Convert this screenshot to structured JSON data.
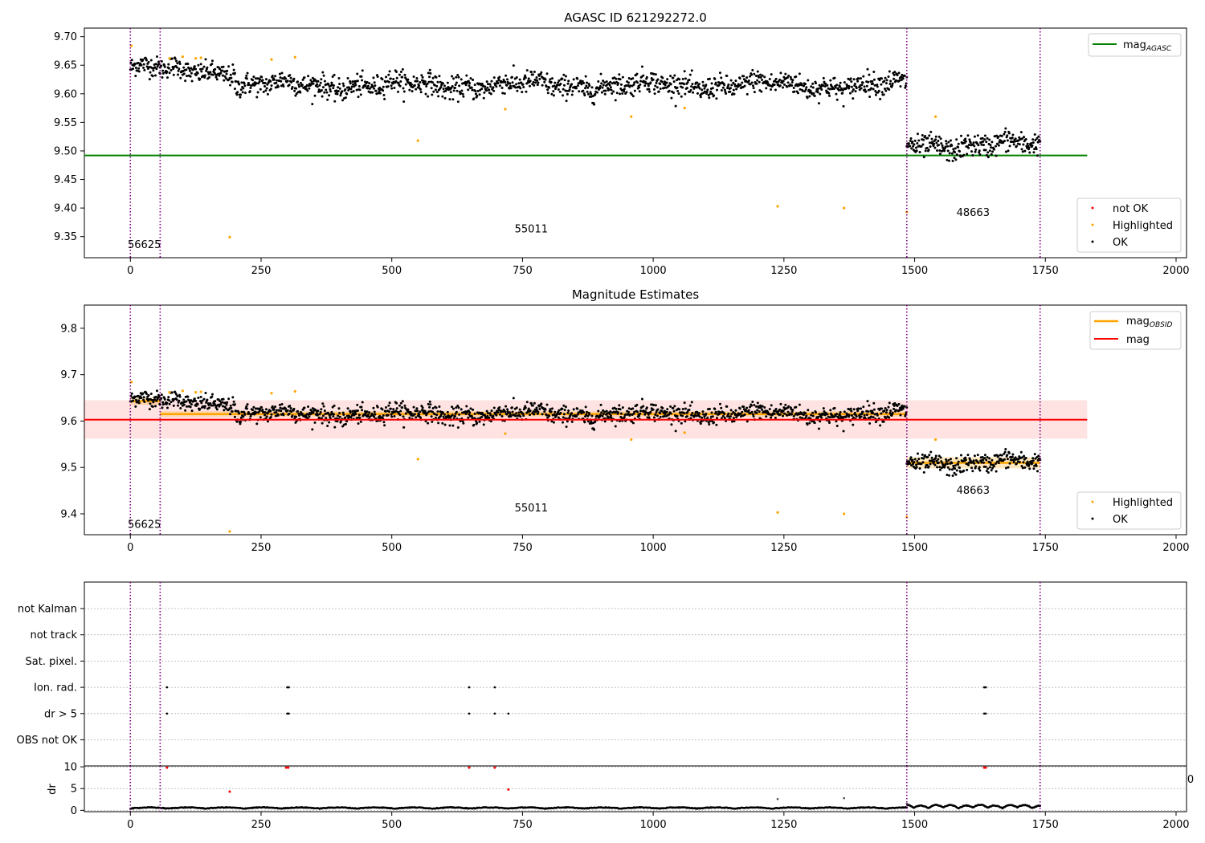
{
  "chart_data": [
    {
      "type": "scatter",
      "title": "AGASC ID 621292272.0",
      "xlim": [
        -88,
        2020
      ],
      "ylim": [
        9.313,
        9.715
      ],
      "xticks": [
        0,
        250,
        500,
        750,
        1000,
        1250,
        1500,
        1750,
        2000
      ],
      "yticks": [
        9.35,
        9.4,
        9.45,
        9.5,
        9.55,
        9.6,
        9.65,
        9.7
      ],
      "ytick_labels": [
        "9.35",
        "9.40",
        "9.45",
        "9.50",
        "9.55",
        "9.60",
        "9.65",
        "9.70"
      ],
      "vlines": [
        0,
        57,
        1485,
        1740
      ],
      "hline": {
        "value": 9.492,
        "x": [
          -88,
          1830
        ],
        "color": "#008000"
      },
      "segments": [
        {
          "x0": 0,
          "x1": 57,
          "center": 9.645,
          "spread": 0.012
        },
        {
          "x0": 57,
          "x1": 200,
          "center": 9.64,
          "spread": 0.012
        },
        {
          "x0": 200,
          "x1": 1485,
          "center": 9.615,
          "spread": 0.013
        },
        {
          "x0": 1485,
          "x1": 1740,
          "center": 9.51,
          "spread": 0.013
        }
      ],
      "highlighted": [
        [
          2,
          9.684
        ],
        [
          75,
          9.662
        ],
        [
          100,
          9.665
        ],
        [
          125,
          9.662
        ],
        [
          135,
          9.663
        ],
        [
          190,
          9.349
        ],
        [
          270,
          9.66
        ],
        [
          315,
          9.664
        ],
        [
          550,
          9.518
        ],
        [
          717,
          9.573
        ],
        [
          958,
          9.56
        ],
        [
          1060,
          9.575
        ],
        [
          1238,
          9.403
        ],
        [
          1365,
          9.4
        ],
        [
          1485,
          9.393
        ],
        [
          1540,
          9.56
        ]
      ],
      "annotations": [
        {
          "text": "56625",
          "x": -5,
          "y": 9.33
        },
        {
          "text": "55011",
          "x": 735,
          "y": 9.357
        },
        {
          "text": "48663",
          "x": 1580,
          "y": 9.386
        }
      ],
      "legend_top": {
        "label_main": "mag",
        "label_sub": "AGASC",
        "color": "#008000"
      },
      "legend_bottom": [
        {
          "label": "not OK",
          "color": "#ff0000"
        },
        {
          "label": "Highlighted",
          "color": "#ffa500"
        },
        {
          "label": "OK",
          "color": "#000000"
        }
      ],
      "legend_top_placement": "top-right",
      "legend_bottom_placement": "bottom-right",
      "grid": false
    },
    {
      "type": "scatter",
      "title": "Magnitude Estimates",
      "xlim": [
        -88,
        2020
      ],
      "ylim": [
        9.355,
        9.85
      ],
      "xticks": [
        0,
        250,
        500,
        750,
        1000,
        1250,
        1500,
        1750,
        2000
      ],
      "yticks": [
        9.4,
        9.5,
        9.6,
        9.7,
        9.8
      ],
      "ytick_labels": [
        "9.4",
        "9.5",
        "9.6",
        "9.7",
        "9.8"
      ],
      "vlines": [
        0,
        57,
        1485,
        1740
      ],
      "mag_line": {
        "value": 9.603,
        "x": [
          -88,
          1830
        ],
        "color": "#ff0000"
      },
      "mag_band": {
        "low": 9.562,
        "high": 9.645,
        "x": [
          -88,
          1830
        ],
        "color": "#ff0000"
      },
      "obsid_mags": [
        {
          "x0": 0,
          "x1": 57,
          "value": 9.643,
          "err": 0.008
        },
        {
          "x0": 57,
          "x1": 1485,
          "value": 9.615,
          "err": 0.006
        },
        {
          "x0": 1485,
          "x1": 1740,
          "value": 9.51,
          "err": 0.012
        }
      ],
      "annotations": [
        {
          "text": "56625",
          "x": -5,
          "y": 9.37
        },
        {
          "text": "55011",
          "x": 735,
          "y": 9.405
        },
        {
          "text": "48663",
          "x": 1580,
          "y": 9.443
        }
      ],
      "legend_top": [
        {
          "label_main": "mag",
          "label_sub": "OBSID",
          "color": "#ffa500"
        },
        {
          "label_main": "mag",
          "label_sub": "",
          "color": "#ff0000"
        }
      ],
      "legend_bottom": [
        {
          "label": "Highlighted",
          "color": "#ffa500"
        },
        {
          "label": "OK",
          "color": "#000000"
        }
      ],
      "extra_highlighted": [
        [
          190,
          9.362
        ]
      ],
      "grid": false
    },
    {
      "type": "scatter",
      "title": "",
      "xlim": [
        -88,
        2020
      ],
      "categories": [
        "not Kalman",
        "not track",
        "Sat. pixel.",
        "Ion. rad.",
        "dr > 5",
        "OBS not OK"
      ],
      "flags": {
        "Ion. rad.": [
          70,
          300,
          303,
          648,
          697,
          1633,
          1636
        ],
        "dr > 5": [
          70,
          300,
          303,
          648,
          697,
          723,
          1633,
          1636
        ],
        "not Kalman": [],
        "not track": [],
        "Sat. pixel.": [],
        "OBS not OK": []
      },
      "grid": true
    },
    {
      "type": "scatter",
      "title": "",
      "xlim": [
        -88,
        2020
      ],
      "ylim": [
        -0.3,
        10.2
      ],
      "xticks": [
        0,
        250,
        500,
        750,
        1000,
        1250,
        1500,
        1750,
        2000
      ],
      "yticks": [
        0,
        5,
        10
      ],
      "ytick_labels": [
        "0",
        "5",
        "10"
      ],
      "ylabel": "dr",
      "vlines": [
        0,
        57,
        1485,
        1740
      ],
      "red_points": [
        [
          70,
          9.8
        ],
        [
          298,
          9.8
        ],
        [
          302,
          9.8
        ],
        [
          648,
          9.8
        ],
        [
          697,
          9.8
        ],
        [
          1633,
          9.8
        ],
        [
          1636,
          9.8
        ],
        [
          190,
          4.3
        ],
        [
          723,
          4.8
        ]
      ],
      "grey_points": [
        [
          1238,
          2.6
        ],
        [
          1365,
          2.8
        ],
        [
          1485,
          1.5
        ]
      ],
      "right_clip_label": "0",
      "grid": true
    }
  ]
}
